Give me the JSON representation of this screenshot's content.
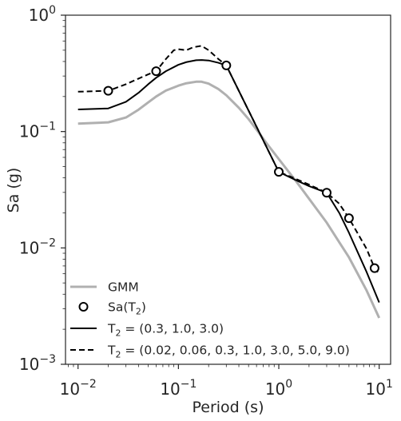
{
  "chart_data": {
    "type": "line",
    "xscale": "log",
    "yscale": "log",
    "xlim": [
      0.0075,
      13
    ],
    "ylim": [
      0.001,
      1
    ],
    "xlabel": "Period (s)",
    "ylabel": "Sa (g)",
    "grid": false,
    "legend_position": "lower-left",
    "x_ticks": [
      {
        "value": 0.01,
        "base": "10",
        "exp": "−2"
      },
      {
        "value": 0.1,
        "base": "10",
        "exp": "−1"
      },
      {
        "value": 1,
        "base": "10",
        "exp": "0"
      },
      {
        "value": 10,
        "base": "10",
        "exp": "1"
      }
    ],
    "y_ticks": [
      {
        "value": 0.001,
        "base": "10",
        "exp": "−3"
      },
      {
        "value": 0.01,
        "base": "10",
        "exp": "−2"
      },
      {
        "value": 0.1,
        "base": "10",
        "exp": "−1"
      },
      {
        "value": 1,
        "base": "10",
        "exp": "0"
      }
    ],
    "series": [
      {
        "name": "GMM",
        "legend_label": "GMM",
        "color": "#b0b0b0",
        "style": "solid",
        "width": 3,
        "marker": "none",
        "x": [
          0.01,
          0.02,
          0.03,
          0.04,
          0.05,
          0.06,
          0.075,
          0.1,
          0.12,
          0.15,
          0.17,
          0.2,
          0.25,
          0.3,
          0.4,
          0.5,
          0.6,
          0.75,
          1.0,
          1.5,
          2.0,
          3.0,
          4.0,
          5.0,
          7.5,
          10.0
        ],
        "y": [
          0.117,
          0.12,
          0.132,
          0.154,
          0.178,
          0.2,
          0.225,
          0.248,
          0.26,
          0.268,
          0.268,
          0.258,
          0.232,
          0.205,
          0.16,
          0.128,
          0.104,
          0.08,
          0.058,
          0.037,
          0.0265,
          0.0165,
          0.0112,
          0.0083,
          0.0043,
          0.0025
        ]
      },
      {
        "name": "Sa(T2)",
        "legend_label_main": "Sa(T",
        "legend_label_sub": "2",
        "legend_label_tail": ")",
        "color": "#000000",
        "style": "none",
        "marker": "circle",
        "x": [
          0.02,
          0.06,
          0.3,
          1.0,
          3.0,
          5.0,
          9.0
        ],
        "y": [
          0.224,
          0.33,
          0.37,
          0.045,
          0.0298,
          0.018,
          0.0067
        ]
      },
      {
        "name": "T2 = (0.3, 1.0, 3.0)",
        "legend_label_main": "T",
        "legend_label_sub": "2",
        "legend_label_tail": " = (0.3, 1.0, 3.0)",
        "color": "#000000",
        "style": "solid",
        "width": 2,
        "marker": "none",
        "x": [
          0.01,
          0.02,
          0.03,
          0.04,
          0.05,
          0.06,
          0.075,
          0.1,
          0.12,
          0.15,
          0.17,
          0.2,
          0.25,
          0.3,
          1.0,
          1.5,
          2.0,
          3.0,
          4.0,
          5.0,
          7.5,
          10.0
        ],
        "y": [
          0.155,
          0.158,
          0.18,
          0.215,
          0.255,
          0.29,
          0.33,
          0.375,
          0.395,
          0.41,
          0.412,
          0.408,
          0.39,
          0.37,
          0.045,
          0.038,
          0.034,
          0.0298,
          0.02,
          0.0135,
          0.0062,
          0.0034
        ]
      },
      {
        "name": "T2 = (0.02, 0.06, 0.3, 1.0, 3.0, 5.0, 9.0)",
        "legend_label_main": "T",
        "legend_label_sub": "2",
        "legend_label_tail": " = (0.02, 0.06, 0.3, 1.0, 3.0, 5.0, 9.0)",
        "color": "#000000",
        "style": "dashed",
        "width": 2,
        "marker": "none",
        "x": [
          0.01,
          0.02,
          0.03,
          0.04,
          0.05,
          0.06,
          0.075,
          0.09,
          0.1,
          0.12,
          0.14,
          0.17,
          0.2,
          0.25,
          0.3,
          1.0,
          1.5,
          2.0,
          3.0,
          4.0,
          5.0,
          7.5,
          9.0,
          10.0
        ],
        "y": [
          0.22,
          0.224,
          0.255,
          0.285,
          0.31,
          0.33,
          0.42,
          0.5,
          0.51,
          0.5,
          0.53,
          0.545,
          0.5,
          0.42,
          0.37,
          0.045,
          0.039,
          0.035,
          0.0298,
          0.024,
          0.018,
          0.0098,
          0.0067,
          0.006
        ]
      }
    ]
  }
}
